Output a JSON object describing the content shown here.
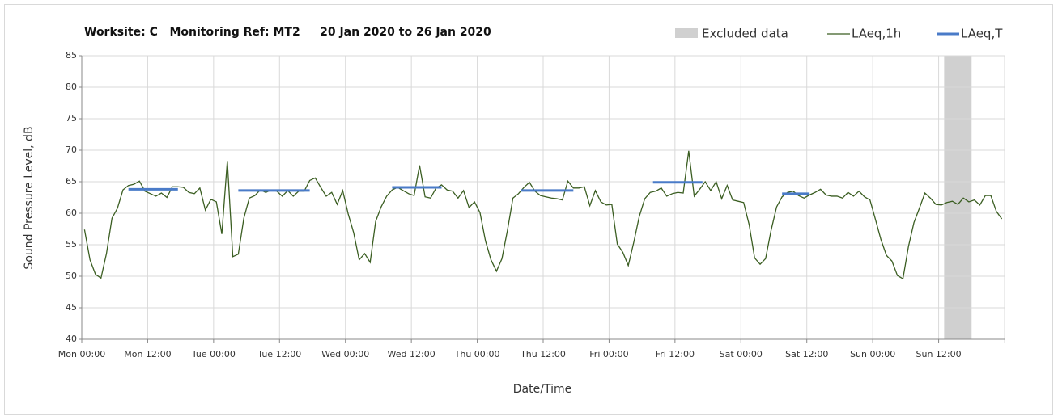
{
  "chart_data": {
    "type": "line",
    "title": "Worksite: C   Monitoring Ref: MT2     20 Jan 2020 to 26 Jan 2020",
    "xlabel": "Date/Time",
    "ylabel": "Sound Pressure Level, dB",
    "xlim": [
      0,
      168
    ],
    "xticks": [
      {
        "value": 0,
        "label": "Mon 00:00"
      },
      {
        "value": 12,
        "label": "Mon 12:00"
      },
      {
        "value": 24,
        "label": "Tue 00:00"
      },
      {
        "value": 36,
        "label": "Tue 12:00"
      },
      {
        "value": 48,
        "label": "Wed 00:00"
      },
      {
        "value": 60,
        "label": "Wed 12:00"
      },
      {
        "value": 72,
        "label": "Thu 00:00"
      },
      {
        "value": 84,
        "label": "Thu 12:00"
      },
      {
        "value": 96,
        "label": "Fri 00:00"
      },
      {
        "value": 108,
        "label": "Fri 12:00"
      },
      {
        "value": 120,
        "label": "Sat 00:00"
      },
      {
        "value": 132,
        "label": "Sat 12:00"
      },
      {
        "value": 144,
        "label": "Sun 00:00"
      },
      {
        "value": 156,
        "label": "Sun 12:00"
      }
    ],
    "ylim": [
      40,
      85
    ],
    "yticks": [
      40,
      45,
      50,
      55,
      60,
      65,
      70,
      75,
      80,
      85
    ],
    "grid": true,
    "legend": "top-right",
    "excluded": {
      "name": "Excluded data",
      "color": "#d0d0d0",
      "x": [
        157,
        162
      ]
    },
    "series": [
      {
        "name": "LAeq,1h",
        "color": "#3b5e22",
        "x": [
          0.5,
          1.5,
          2.5,
          3.5,
          4.5,
          5.5,
          6.5,
          7.5,
          8.5,
          9.5,
          10.5,
          11.5,
          12.5,
          13.5,
          14.5,
          15.5,
          16.5,
          17.5,
          18.5,
          19.5,
          20.5,
          21.5,
          22.5,
          23.5,
          24.5,
          25.5,
          26.5,
          27.5,
          28.5,
          29.5,
          30.5,
          31.5,
          32.5,
          33.5,
          34.5,
          35.5,
          36.5,
          37.5,
          38.5,
          39.5,
          40.5,
          41.5,
          42.5,
          43.5,
          44.5,
          45.5,
          46.5,
          47.5,
          48.5,
          49.5,
          50.5,
          51.5,
          52.5,
          53.5,
          54.5,
          55.5,
          56.5,
          57.5,
          58.5,
          59.5,
          60.5,
          61.5,
          62.5,
          63.5,
          64.5,
          65.5,
          66.5,
          67.5,
          68.5,
          69.5,
          70.5,
          71.5,
          72.5,
          73.5,
          74.5,
          75.5,
          76.5,
          77.5,
          78.5,
          79.5,
          80.5,
          81.5,
          82.5,
          83.5,
          84.5,
          85.5,
          86.5,
          87.5,
          88.5,
          89.5,
          90.5,
          91.5,
          92.5,
          93.5,
          94.5,
          95.5,
          96.5,
          97.5,
          98.5,
          99.5,
          100.5,
          101.5,
          102.5,
          103.5,
          104.5,
          105.5,
          106.5,
          107.5,
          108.5,
          109.5,
          110.5,
          111.5,
          112.5,
          113.5,
          114.5,
          115.5,
          116.5,
          117.5,
          118.5,
          119.5,
          120.5,
          121.5,
          122.5,
          123.5,
          124.5,
          125.5,
          126.5,
          127.5,
          128.5,
          129.5,
          130.5,
          131.5,
          132.5,
          133.5,
          134.5,
          135.5,
          136.5,
          137.5,
          138.5,
          139.5,
          140.5,
          141.5,
          142.5,
          143.5,
          144.5,
          145.5,
          146.5,
          147.5,
          148.5,
          149.5,
          150.5,
          151.5,
          152.5,
          153.5,
          154.5,
          155.5,
          156.5,
          157.5,
          158.5,
          159.5,
          160.5,
          161.5,
          162.5,
          163.5,
          164.5,
          165.5,
          166.5,
          167.5
        ],
        "values": [
          57.4,
          52.6,
          50.3,
          49.7,
          53.6,
          59.2,
          60.8,
          63.7,
          64.4,
          64.6,
          65.1,
          63.5,
          63.1,
          62.7,
          63.2,
          62.5,
          64.2,
          64.2,
          64.1,
          63.3,
          63.1,
          64.0,
          60.5,
          62.2,
          61.8,
          56.7,
          68.3,
          53.1,
          53.5,
          59.2,
          62.4,
          62.8,
          63.7,
          63.3,
          63.7,
          63.5,
          62.7,
          63.6,
          62.7,
          63.5,
          63.5,
          65.2,
          65.6,
          64.1,
          62.7,
          63.3,
          61.4,
          63.6,
          59.9,
          56.9,
          52.6,
          53.6,
          52.2,
          58.7,
          61.0,
          62.7,
          63.7,
          64.1,
          63.6,
          63.1,
          62.8,
          67.6,
          62.6,
          62.4,
          64.0,
          64.5,
          63.7,
          63.5,
          62.4,
          63.6,
          60.9,
          61.8,
          60.1,
          55.6,
          52.6,
          50.8,
          52.8,
          57.3,
          62.4,
          63.1,
          64.1,
          64.9,
          63.5,
          62.8,
          62.6,
          62.4,
          62.3,
          62.1,
          65.1,
          64.0,
          64.0,
          64.2,
          61.2,
          63.6,
          61.8,
          61.3,
          61.4,
          55.1,
          53.8,
          51.7,
          55.4,
          59.5,
          62.3,
          63.3,
          63.5,
          64.0,
          62.7,
          63.1,
          63.3,
          63.2,
          69.9,
          62.7,
          63.8,
          65.0,
          63.6,
          65.0,
          62.3,
          64.4,
          62.1,
          61.9,
          61.7,
          58.2,
          52.9,
          51.9,
          52.8,
          57.3,
          61.0,
          62.6,
          63.3,
          63.5,
          62.8,
          62.4,
          62.9,
          63.3,
          63.8,
          62.9,
          62.7,
          62.7,
          62.4,
          63.3,
          62.7,
          63.5,
          62.6,
          62.1,
          59.0,
          55.8,
          53.3,
          52.4,
          50.1,
          49.6,
          54.7,
          58.5,
          60.8,
          63.2,
          62.4,
          61.4,
          61.3,
          61.7,
          61.9,
          61.4,
          62.4,
          61.8,
          62.1,
          61.3,
          62.8,
          62.8,
          60.3,
          59.1
        ]
      },
      {
        "name": "LAeq,T",
        "color": "#4a7bc8",
        "x": [
          8.5,
          17.5,
          null,
          28.5,
          41.5,
          null,
          56.5,
          65.5,
          null,
          80,
          89.5,
          null,
          104,
          113,
          null,
          127.5,
          132.5
        ],
        "values": [
          63.8,
          63.8,
          null,
          63.6,
          63.6,
          null,
          64.1,
          64.1,
          null,
          63.6,
          63.6,
          null,
          64.9,
          64.9,
          null,
          63.1,
          63.1
        ]
      }
    ]
  }
}
